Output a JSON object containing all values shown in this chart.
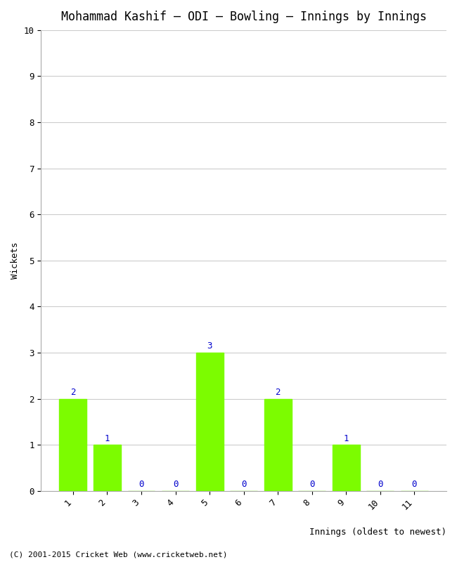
{
  "title": "Mohammad Kashif – ODI – Bowling – Innings by Innings",
  "xlabel": "Innings (oldest to newest)",
  "ylabel": "Wickets",
  "categories": [
    "1",
    "2",
    "3",
    "4",
    "5",
    "6",
    "7",
    "8",
    "9",
    "10",
    "11"
  ],
  "values": [
    2,
    1,
    0,
    0,
    3,
    0,
    2,
    0,
    1,
    0,
    0
  ],
  "bar_color": "#7CFC00",
  "label_color": "#0000CD",
  "ylim": [
    0,
    10
  ],
  "yticks": [
    0,
    1,
    2,
    3,
    4,
    5,
    6,
    7,
    8,
    9,
    10
  ],
  "background_color": "#ffffff",
  "plot_bg_color": "#ffffff",
  "title_fontsize": 12,
  "label_fontsize": 9,
  "tick_fontsize": 9,
  "annotation_fontsize": 9,
  "footer": "(C) 2001-2015 Cricket Web (www.cricketweb.net)"
}
